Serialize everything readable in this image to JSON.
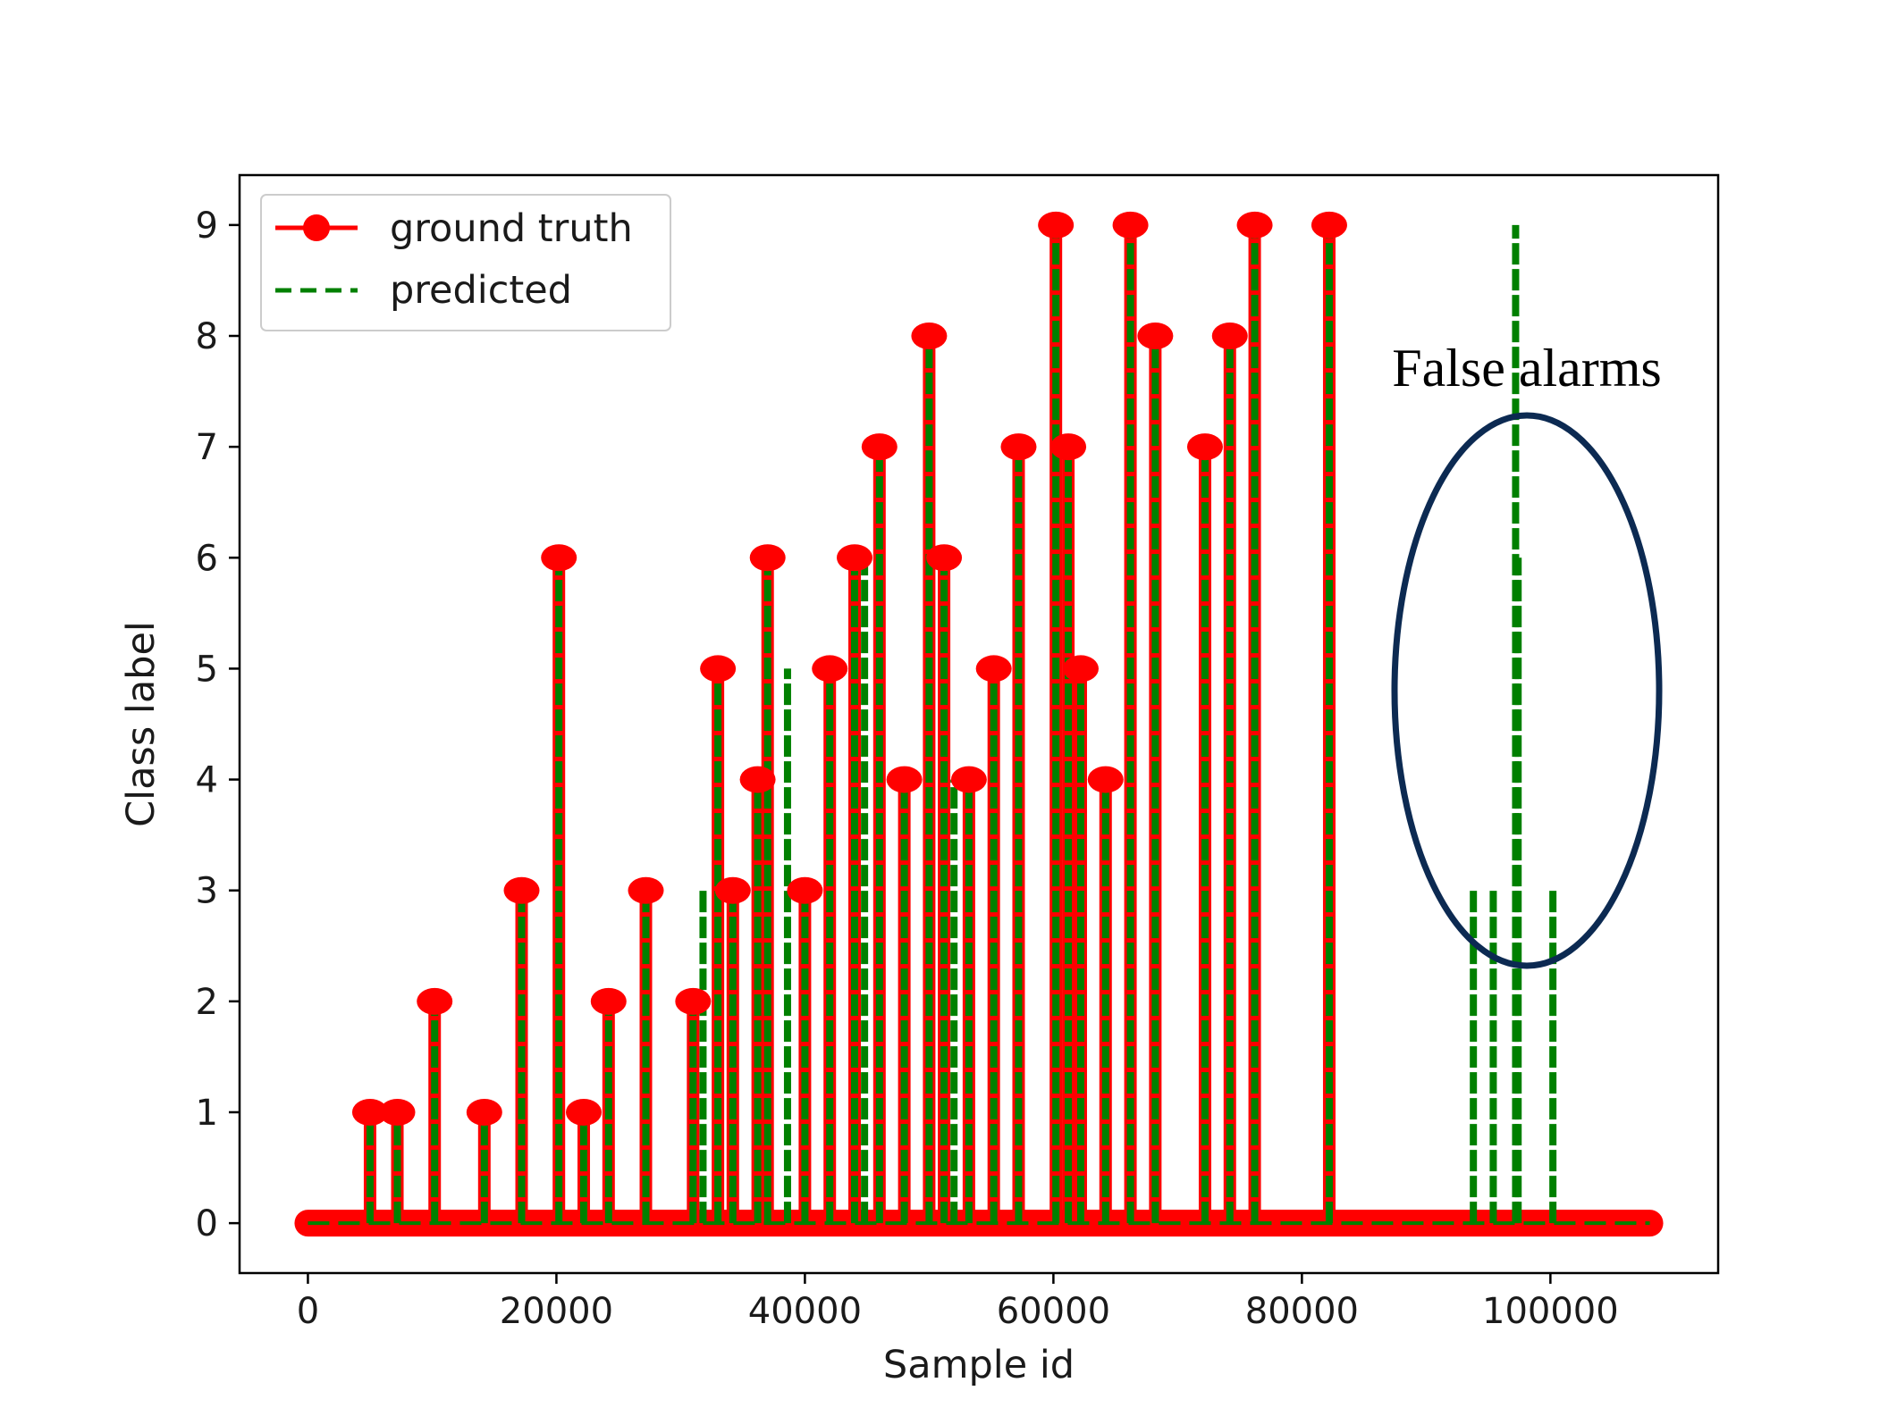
{
  "chart_data": {
    "type": "line",
    "xlabel": "Sample id",
    "ylabel": "Class label",
    "xlim": [
      -5500,
      113500
    ],
    "ylim": [
      -0.45,
      9.45
    ],
    "xticks": [
      0,
      20000,
      40000,
      60000,
      80000,
      100000
    ],
    "xtick_labels": [
      "0",
      "20000",
      "40000",
      "60000",
      "80000",
      "100000"
    ],
    "yticks": [
      0,
      1,
      2,
      3,
      4,
      5,
      6,
      7,
      8,
      9
    ],
    "ytick_labels": [
      "0",
      "1",
      "2",
      "3",
      "4",
      "5",
      "6",
      "7",
      "8",
      "9"
    ],
    "baseline_x_range": [
      0,
      108000
    ],
    "grid": false,
    "legend_position": "top-left",
    "series": [
      {
        "name": "ground truth",
        "color": "#ff0000",
        "style": "solid",
        "marker": "circle",
        "spikes": [
          {
            "x": 5000,
            "y": 1
          },
          {
            "x": 7200,
            "y": 1
          },
          {
            "x": 10200,
            "y": 2
          },
          {
            "x": 14200,
            "y": 1
          },
          {
            "x": 17200,
            "y": 3
          },
          {
            "x": 20200,
            "y": 6
          },
          {
            "x": 22200,
            "y": 1
          },
          {
            "x": 24200,
            "y": 2
          },
          {
            "x": 27200,
            "y": 3
          },
          {
            "x": 31000,
            "y": 2
          },
          {
            "x": 33000,
            "y": 5
          },
          {
            "x": 34200,
            "y": 3
          },
          {
            "x": 36200,
            "y": 4
          },
          {
            "x": 37000,
            "y": 6
          },
          {
            "x": 40000,
            "y": 3
          },
          {
            "x": 42000,
            "y": 5
          },
          {
            "x": 44000,
            "y": 6
          },
          {
            "x": 46000,
            "y": 7
          },
          {
            "x": 48000,
            "y": 4
          },
          {
            "x": 50000,
            "y": 8
          },
          {
            "x": 51200,
            "y": 6
          },
          {
            "x": 53200,
            "y": 4
          },
          {
            "x": 55200,
            "y": 5
          },
          {
            "x": 57200,
            "y": 7
          },
          {
            "x": 60200,
            "y": 9
          },
          {
            "x": 61200,
            "y": 7
          },
          {
            "x": 62200,
            "y": 5
          },
          {
            "x": 64200,
            "y": 4
          },
          {
            "x": 66200,
            "y": 9
          },
          {
            "x": 68200,
            "y": 8
          },
          {
            "x": 72200,
            "y": 7
          },
          {
            "x": 74200,
            "y": 8
          },
          {
            "x": 76200,
            "y": 9
          },
          {
            "x": 82200,
            "y": 9
          }
        ]
      },
      {
        "name": "predicted",
        "color": "#008000",
        "style": "dashed",
        "marker": "none",
        "spikes": [
          {
            "x": 5000,
            "y": 1
          },
          {
            "x": 7200,
            "y": 1
          },
          {
            "x": 10200,
            "y": 2
          },
          {
            "x": 14200,
            "y": 1
          },
          {
            "x": 17200,
            "y": 3
          },
          {
            "x": 20200,
            "y": 6
          },
          {
            "x": 22200,
            "y": 1
          },
          {
            "x": 24200,
            "y": 2
          },
          {
            "x": 27200,
            "y": 3
          },
          {
            "x": 31000,
            "y": 2
          },
          {
            "x": 31800,
            "y": 3
          },
          {
            "x": 33000,
            "y": 5
          },
          {
            "x": 34200,
            "y": 3
          },
          {
            "x": 36200,
            "y": 4
          },
          {
            "x": 37000,
            "y": 6
          },
          {
            "x": 38600,
            "y": 5
          },
          {
            "x": 40000,
            "y": 3
          },
          {
            "x": 42000,
            "y": 5
          },
          {
            "x": 44000,
            "y": 6
          },
          {
            "x": 44800,
            "y": 6
          },
          {
            "x": 46000,
            "y": 7
          },
          {
            "x": 48000,
            "y": 4
          },
          {
            "x": 50000,
            "y": 8
          },
          {
            "x": 51200,
            "y": 6
          },
          {
            "x": 52000,
            "y": 4
          },
          {
            "x": 53200,
            "y": 4
          },
          {
            "x": 55200,
            "y": 5
          },
          {
            "x": 57200,
            "y": 7
          },
          {
            "x": 60200,
            "y": 9
          },
          {
            "x": 61200,
            "y": 7
          },
          {
            "x": 62200,
            "y": 5
          },
          {
            "x": 64200,
            "y": 4
          },
          {
            "x": 66200,
            "y": 9
          },
          {
            "x": 68200,
            "y": 8
          },
          {
            "x": 72200,
            "y": 7
          },
          {
            "x": 74200,
            "y": 8
          },
          {
            "x": 76200,
            "y": 9
          },
          {
            "x": 82200,
            "y": 9
          },
          {
            "x": 93800,
            "y": 3
          },
          {
            "x": 95400,
            "y": 3
          },
          {
            "x": 97200,
            "y": 9
          },
          {
            "x": 97400,
            "y": 6
          },
          {
            "x": 100200,
            "y": 3
          }
        ]
      }
    ],
    "annotation": {
      "text": "False alarms",
      "ellipse_color": "#0c2a52"
    }
  }
}
